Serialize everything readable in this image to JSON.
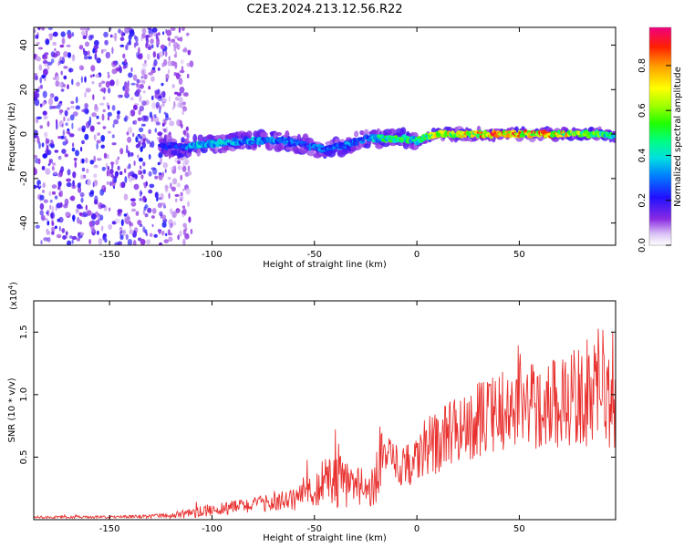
{
  "title": "C2E3.2024.213.12.56.R22",
  "chart_data": [
    {
      "type": "heatmap",
      "xlabel": "Height of straight line (km)",
      "ylabel": "Frequency (Hz)",
      "xlim": [
        -187,
        97
      ],
      "ylim": [
        -50,
        48
      ],
      "x_ticks": [
        -150,
        -100,
        -50,
        0,
        50
      ],
      "x_tick_labels": [
        "-150",
        "-100",
        "-50",
        "0",
        "50"
      ],
      "y_ticks": [
        -40,
        -20,
        0,
        20,
        40
      ],
      "y_tick_labels": [
        "-40",
        "-20",
        "0",
        "20",
        "40"
      ],
      "colorbar": {
        "label": "Normalized spectral amplitude",
        "range": [
          0,
          0.97
        ],
        "ticks": [
          0.0,
          0.2,
          0.4,
          0.6,
          0.8
        ],
        "tick_labels": [
          "0.0",
          "0.2",
          "0.4",
          "0.6",
          "0.8"
        ]
      },
      "noise_region_x": [
        -187,
        -110
      ],
      "ridge": {
        "x": [
          -125,
          -115,
          -105,
          -95,
          -85,
          -75,
          -65,
          -55,
          -45,
          -35,
          -25,
          -20,
          -15,
          -10,
          -5,
          0,
          5,
          10,
          20,
          30,
          40,
          50,
          60,
          70,
          80,
          90,
          97
        ],
        "y": [
          -5,
          -6,
          -5,
          -4,
          -3,
          -3,
          -3,
          -5,
          -7,
          -5,
          -2,
          -2,
          -2,
          -2,
          -2,
          -3,
          -1,
          0,
          0,
          0,
          0,
          0,
          0,
          0,
          0,
          0,
          -1
        ],
        "amplitude": [
          0.25,
          0.3,
          0.45,
          0.4,
          0.4,
          0.4,
          0.35,
          0.3,
          0.35,
          0.35,
          0.35,
          0.45,
          0.55,
          0.6,
          0.6,
          0.55,
          0.6,
          0.75,
          0.8,
          0.85,
          0.9,
          0.9,
          0.9,
          0.85,
          0.75,
          0.6,
          0.5
        ]
      }
    },
    {
      "type": "line",
      "xlabel": "Height of straight line (km)",
      "ylabel": "SNR (10 * v/v)",
      "y_multiplier": "(x10",
      "y_multiplier_exp": "4",
      "y_multiplier_close": ")",
      "xlim": [
        -187,
        97
      ],
      "ylim": [
        0,
        1.75
      ],
      "x_ticks": [
        -150,
        -100,
        -50,
        0,
        50
      ],
      "x_tick_labels": [
        "-150",
        "-100",
        "-50",
        "0",
        "50"
      ],
      "y_ticks": [
        0.5,
        1.0,
        1.5
      ],
      "y_tick_labels": [
        "0.5",
        "1.0",
        "1.5"
      ],
      "color": "#e8312f",
      "series": [
        {
          "x": [
            -187,
            -150,
            -120,
            -110,
            -100,
            -90,
            -80,
            -70,
            -60,
            -55,
            -50,
            -45,
            -40,
            -35,
            -30,
            -25,
            -20,
            -18,
            -15,
            -10,
            -5,
            0,
            5,
            10,
            20,
            30,
            40,
            50,
            60,
            70,
            80,
            90,
            97
          ],
          "y": [
            0.02,
            0.02,
            0.03,
            0.05,
            0.08,
            0.1,
            0.12,
            0.14,
            0.16,
            0.22,
            0.25,
            0.3,
            0.32,
            0.3,
            0.28,
            0.22,
            0.3,
            0.55,
            0.5,
            0.42,
            0.45,
            0.48,
            0.55,
            0.62,
            0.72,
            0.8,
            0.85,
            0.9,
            0.92,
            0.95,
            0.98,
            1.0,
            0.95
          ],
          "spread": [
            0.01,
            0.01,
            0.02,
            0.04,
            0.05,
            0.06,
            0.06,
            0.07,
            0.09,
            0.14,
            0.17,
            0.2,
            0.22,
            0.22,
            0.18,
            0.14,
            0.2,
            0.3,
            0.2,
            0.15,
            0.18,
            0.2,
            0.22,
            0.25,
            0.28,
            0.3,
            0.32,
            0.35,
            0.35,
            0.38,
            0.4,
            0.42,
            0.4
          ]
        }
      ]
    }
  ]
}
